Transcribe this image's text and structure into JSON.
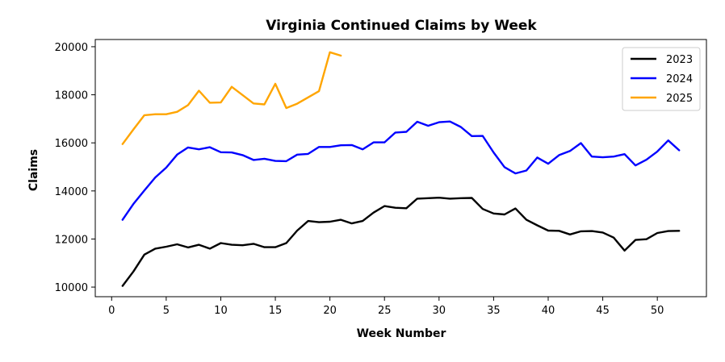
{
  "chart_data": {
    "type": "line",
    "title": "Virginia Continued Claims by Week",
    "xlabel": "Week Number",
    "ylabel": "Claims",
    "xlim": [
      -1.5,
      54.5
    ],
    "ylim": [
      9600,
      20300
    ],
    "xticks": [
      0,
      5,
      10,
      15,
      20,
      25,
      30,
      35,
      40,
      45,
      50
    ],
    "yticks": [
      10000,
      12000,
      14000,
      16000,
      18000,
      20000
    ],
    "grid": false,
    "legend_position": "top-right",
    "series": [
      {
        "name": "2023",
        "color": "#000000",
        "x": [
          1,
          2,
          3,
          4,
          5,
          6,
          7,
          8,
          9,
          10,
          11,
          12,
          13,
          14,
          15,
          16,
          17,
          18,
          19,
          20,
          21,
          22,
          23,
          24,
          25,
          26,
          27,
          28,
          29,
          30,
          31,
          32,
          33,
          34,
          35,
          36,
          37,
          38,
          39,
          40,
          41,
          42,
          43,
          44,
          45,
          46,
          47,
          48,
          49,
          50,
          51,
          52
        ],
        "values": [
          10050,
          10650,
          11350,
          11600,
          11680,
          11780,
          11650,
          11760,
          11600,
          11830,
          11760,
          11740,
          11800,
          11660,
          11660,
          11830,
          12350,
          12750,
          12700,
          12720,
          12800,
          12650,
          12750,
          13100,
          13370,
          13300,
          13280,
          13680,
          13700,
          13720,
          13680,
          13700,
          13710,
          13250,
          13060,
          13020,
          13270,
          12800,
          12570,
          12350,
          12340,
          12190,
          12320,
          12330,
          12270,
          12060,
          11520,
          11960,
          11990,
          12250,
          12330,
          12340
        ]
      },
      {
        "name": "2024",
        "color": "#0000ff",
        "x": [
          1,
          2,
          3,
          4,
          5,
          6,
          7,
          8,
          9,
          10,
          11,
          12,
          13,
          14,
          15,
          16,
          17,
          18,
          19,
          20,
          21,
          22,
          23,
          24,
          25,
          26,
          27,
          28,
          29,
          30,
          31,
          32,
          33,
          34,
          35,
          36,
          37,
          38,
          39,
          40,
          41,
          42,
          43,
          44,
          45,
          46,
          47,
          48,
          49,
          50,
          51,
          52
        ],
        "values": [
          12800,
          13460,
          14020,
          14560,
          14970,
          15510,
          15810,
          15730,
          15820,
          15610,
          15600,
          15490,
          15290,
          15340,
          15250,
          15240,
          15510,
          15540,
          15830,
          15830,
          15900,
          15910,
          15730,
          16020,
          16020,
          16430,
          16460,
          16880,
          16710,
          16860,
          16890,
          16660,
          16280,
          16290,
          15600,
          14990,
          14730,
          14850,
          15390,
          15130,
          15490,
          15660,
          15990,
          15430,
          15400,
          15430,
          15530,
          15060,
          15300,
          15640,
          16100,
          15690
        ]
      },
      {
        "name": "2025",
        "color": "#ffa500",
        "x": [
          1,
          2,
          3,
          4,
          5,
          6,
          7,
          8,
          9,
          10,
          11,
          12,
          13,
          14,
          15,
          16,
          17,
          18,
          19,
          20,
          21
        ],
        "values": [
          15950,
          16560,
          17150,
          17190,
          17190,
          17290,
          17570,
          18170,
          17670,
          17680,
          18330,
          17990,
          17640,
          17600,
          18460,
          17450,
          17630,
          17890,
          18150,
          19770,
          19630
        ]
      }
    ]
  }
}
